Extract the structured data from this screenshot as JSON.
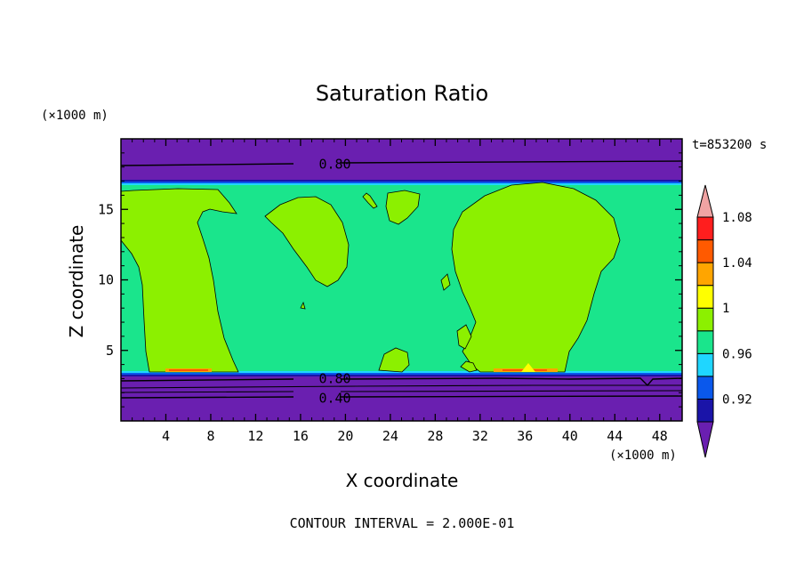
{
  "chart_data": {
    "type": "heatmap",
    "title": "Saturation Ratio",
    "xlabel": "X coordinate",
    "ylabel": "Z coordinate",
    "x_unit": "(×1000 m)",
    "y_unit": "(×1000 m)",
    "time_label": "t=853200 s",
    "footer": "CONTOUR INTERVAL = 2.000E-01",
    "xlim": [
      0,
      50
    ],
    "ylim": [
      0,
      20
    ],
    "x_ticks": [
      4,
      8,
      12,
      16,
      20,
      24,
      28,
      32,
      36,
      40,
      44,
      48
    ],
    "y_ticks": [
      5,
      10,
      15
    ],
    "contour_labels": [
      {
        "text": "0.80",
        "x": 17,
        "y": 18.2
      },
      {
        "text": "0.80",
        "x": 17,
        "y": 3.0
      },
      {
        "text": "0.40",
        "x": 17,
        "y": 1.6
      }
    ],
    "colorbar": {
      "ticks": [
        "0.92",
        "0.96",
        "1",
        "1.04",
        "1.08"
      ],
      "levels": [
        {
          "color": "#6a1fb0"
        },
        {
          "color": "#1a14a8"
        },
        {
          "color": "#0a58ec"
        },
        {
          "color": "#1fd6ff"
        },
        {
          "color": "#1ae58c"
        },
        {
          "color": "#8cf000"
        },
        {
          "color": "#ffff00"
        },
        {
          "color": "#ffa500"
        },
        {
          "color": "#ff5a00"
        },
        {
          "color": "#ff1e1e"
        },
        {
          "color": "#f0a3a3"
        }
      ]
    }
  }
}
